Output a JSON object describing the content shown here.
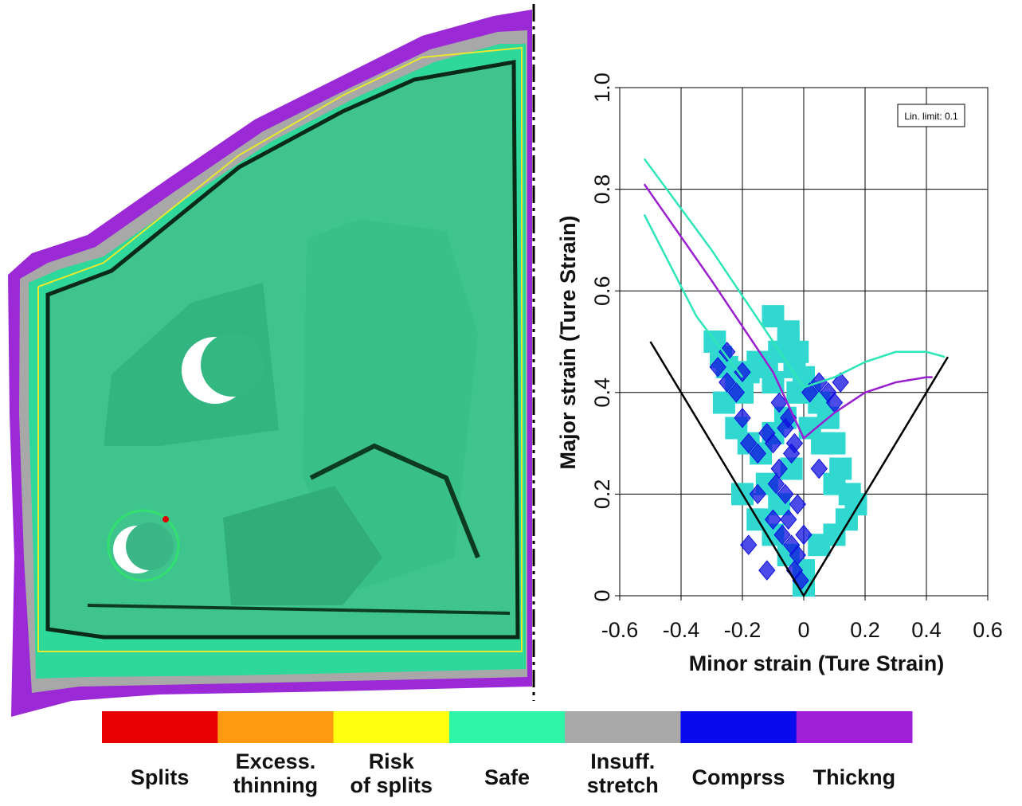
{
  "chart_data": {
    "type": "scatter",
    "x_label": "Minor strain (Ture Strain)",
    "y_label": "Major strain (Ture Strain)",
    "annotation": "Lin. limit: 0.1",
    "xlim": [
      -0.6,
      0.6
    ],
    "xticks": [
      -0.6,
      -0.4,
      -0.2,
      0,
      0.2,
      0.4,
      0.6
    ],
    "ylim": [
      0,
      1
    ],
    "yticks": [
      0,
      0.2,
      0.4,
      0.6,
      0.8,
      {
        "value": 1,
        "label": "1.0"
      }
    ],
    "grid": true,
    "lines": [
      {
        "color": "#000000",
        "x": [
          -0.5,
          0,
          0.47
        ],
        "y": [
          0.5,
          0,
          0.47
        ]
      },
      {
        "color": "#2ee6b8",
        "x": [
          -0.52,
          -0.3,
          -0.1,
          0,
          0.1,
          0.2,
          0.3,
          0.4,
          0.46
        ],
        "y": [
          0.86,
          0.68,
          0.5,
          0.41,
          0.43,
          0.46,
          0.48,
          0.48,
          0.47
        ]
      },
      {
        "color": "#9a1fd0",
        "x": [
          -0.52,
          -0.3,
          -0.1,
          0,
          0.1,
          0.2,
          0.3,
          0.4,
          0.42
        ],
        "y": [
          0.81,
          0.62,
          0.44,
          0.31,
          0.36,
          0.4,
          0.42,
          0.43,
          0.43
        ]
      },
      {
        "color": "#2ee6b8",
        "x": [
          -0.52,
          -0.35,
          -0.2
        ],
        "y": [
          0.75,
          0.55,
          0.43
        ]
      }
    ],
    "scatter": [
      {
        "color": "#30d8d0",
        "marker": "square",
        "x": [
          -0.29,
          -0.27,
          -0.25,
          -0.22,
          -0.2,
          -0.18,
          -0.15,
          -0.12,
          -0.1,
          -0.08,
          -0.05,
          -0.03,
          0,
          0.02,
          0.05,
          0.08,
          0.1,
          0.12,
          0.15,
          0.17,
          -0.26,
          -0.22,
          -0.18,
          -0.14,
          -0.1,
          -0.06,
          -0.02,
          0.02,
          0.06,
          0.1,
          0.14,
          -0.2,
          -0.15,
          -0.1,
          -0.05,
          0,
          0.05,
          0.1,
          -0.1,
          -0.05,
          -0.02,
          0,
          -0.12,
          -0.08,
          -0.04
        ],
        "y": [
          0.5,
          0.47,
          0.45,
          0.42,
          0.4,
          0.44,
          0.46,
          0.45,
          0.42,
          0.48,
          0.5,
          0.45,
          0.43,
          0.4,
          0.38,
          0.35,
          0.3,
          0.25,
          0.2,
          0.18,
          0.38,
          0.33,
          0.3,
          0.28,
          0.32,
          0.35,
          0.4,
          0.33,
          0.3,
          0.22,
          0.15,
          0.2,
          0.15,
          0.12,
          0.08,
          0.05,
          0.1,
          0.12,
          0.55,
          0.52,
          0.48,
          0.02,
          0.22,
          0.18,
          0.25
        ]
      },
      {
        "color": "#1010e0",
        "marker": "diamond",
        "x": [
          -0.28,
          -0.25,
          -0.22,
          -0.2,
          -0.18,
          -0.15,
          -0.12,
          -0.1,
          -0.08,
          -0.06,
          -0.05,
          -0.04,
          -0.03,
          -0.02,
          -0.01,
          0.02,
          0.05,
          0.08,
          0.1,
          0.12,
          -0.25,
          -0.2,
          -0.15,
          -0.1,
          -0.08,
          -0.06,
          -0.04,
          -0.02,
          0,
          0.05,
          -0.18,
          -0.12,
          -0.09,
          -0.07,
          -0.05,
          -0.03
        ],
        "y": [
          0.45,
          0.42,
          0.4,
          0.35,
          0.3,
          0.28,
          0.32,
          0.3,
          0.25,
          0.2,
          0.15,
          0.1,
          0.05,
          0.08,
          0.03,
          0.4,
          0.42,
          0.4,
          0.38,
          0.42,
          0.48,
          0.44,
          0.2,
          0.15,
          0.38,
          0.33,
          0.28,
          0.18,
          0.12,
          0.25,
          0.1,
          0.05,
          0.22,
          0.12,
          0.35,
          0.3
        ]
      }
    ]
  },
  "color_legend": {
    "items": [
      {
        "lines": [
          "Splits"
        ],
        "color": "#e80000"
      },
      {
        "lines": [
          "Excess.",
          "thinning"
        ],
        "color": "#ff9a10"
      },
      {
        "lines": [
          "Risk",
          "of splits"
        ],
        "color": "#ffff10"
      },
      {
        "lines": [
          "Safe"
        ],
        "color": "#30f5a8"
      },
      {
        "lines": [
          "Insuff.",
          "stretch"
        ],
        "color": "#a8a8a8"
      },
      {
        "lines": [
          "Comprss"
        ],
        "color": "#0a0aee"
      },
      {
        "lines": [
          "Thickng"
        ],
        "color": "#a020d8"
      }
    ]
  }
}
